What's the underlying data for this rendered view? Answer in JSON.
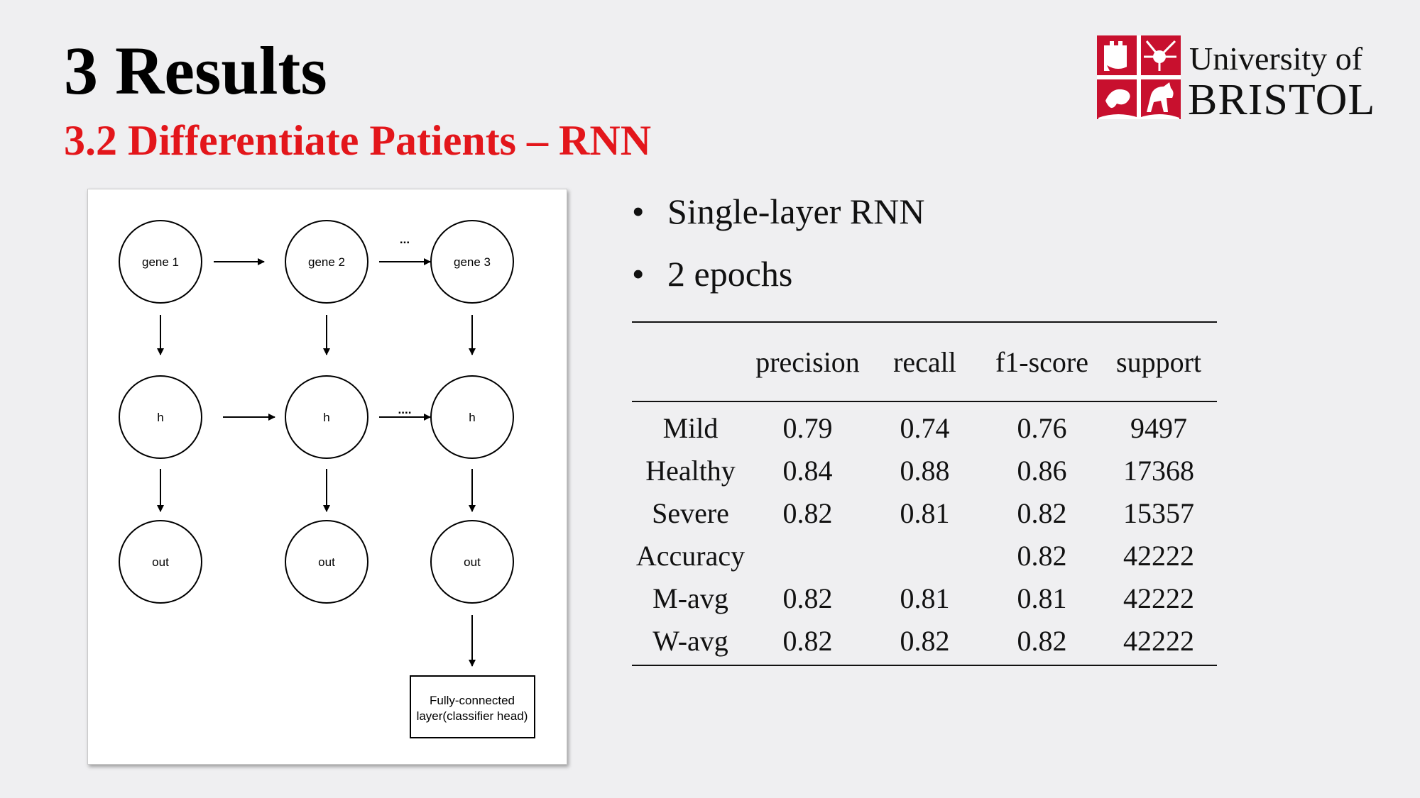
{
  "title": "3 Results",
  "subtitle": "3.2 Differentiate Patients – RNN",
  "logo": {
    "line1": "University of",
    "line2": "BRISTOL",
    "color": "#c8102e"
  },
  "diagram": {
    "nodes": {
      "gene1": "gene 1",
      "gene2": "gene 2",
      "gene3": "gene 3",
      "h": "h",
      "out": "out"
    },
    "ellipsis_top": "...",
    "ellipsis_mid": "....",
    "classifier_line1": "Fully-connected",
    "classifier_line2": "layer(classifier head)"
  },
  "bullets": [
    "Single-layer RNN",
    "2 epochs"
  ],
  "table": {
    "headers": [
      "",
      "precision",
      "recall",
      "f1-score",
      "support"
    ],
    "rows": [
      [
        "Mild",
        "0.79",
        "0.74",
        "0.76",
        "9497"
      ],
      [
        "Healthy",
        "0.84",
        "0.88",
        "0.86",
        "17368"
      ],
      [
        "Severe",
        "0.82",
        "0.81",
        "0.82",
        "15357"
      ],
      [
        "Accuracy",
        "",
        "",
        "0.82",
        "42222"
      ],
      [
        "M-avg",
        "0.82",
        "0.81",
        "0.81",
        "42222"
      ],
      [
        "W-avg",
        "0.82",
        "0.82",
        "0.82",
        "42222"
      ]
    ]
  }
}
